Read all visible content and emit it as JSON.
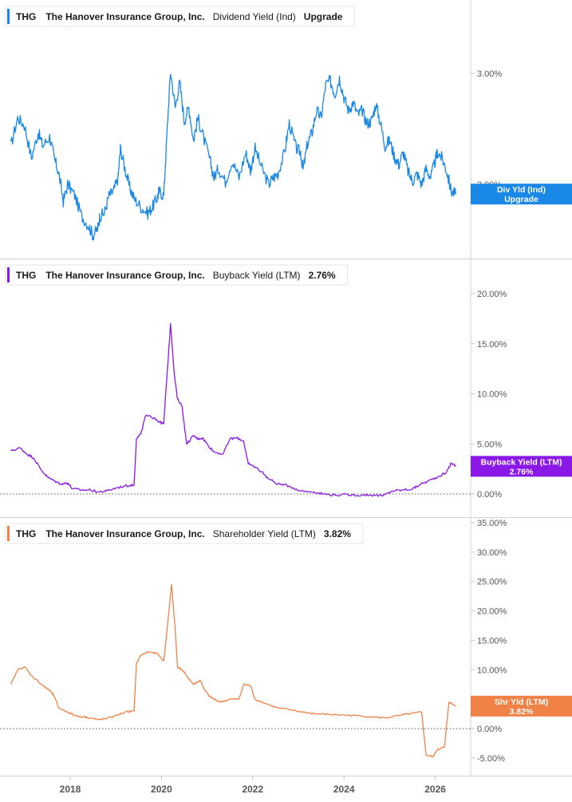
{
  "chart_data": {
    "type": "line",
    "x_axis": {
      "ticks": [
        "2018",
        "2020",
        "2022",
        "2024",
        "2026"
      ],
      "range": [
        "2016-09-01",
        "2026-07-01"
      ]
    },
    "panels": [
      {
        "ticker": "THG",
        "company": "The Hanover Insurance Group, Inc.",
        "metric": "Dividend Yield (Ind)",
        "value_label": "Upgrade",
        "color": "#1a88e6",
        "flag": {
          "line1": "Div Yld (Ind)",
          "line2": "Upgrade",
          "value": 1.93
        },
        "y_scale": "log",
        "ylim": [
          1.55,
          3.5
        ],
        "y_ticks": [
          {
            "value": 3.0,
            "label": "3.00%"
          },
          {
            "value": 2.0,
            "label": "2.00%"
          }
        ],
        "zero_line": false,
        "series": [
          [
            2016.7,
            2.3
          ],
          [
            2016.85,
            2.55
          ],
          [
            2017.0,
            2.48
          ],
          [
            2017.15,
            2.2
          ],
          [
            2017.3,
            2.42
          ],
          [
            2017.4,
            2.3
          ],
          [
            2017.55,
            2.38
          ],
          [
            2017.65,
            2.2
          ],
          [
            2017.75,
            2.08
          ],
          [
            2017.85,
            1.88
          ],
          [
            2017.95,
            2.0
          ],
          [
            2018.1,
            1.92
          ],
          [
            2018.25,
            1.78
          ],
          [
            2018.4,
            1.72
          ],
          [
            2018.5,
            1.66
          ],
          [
            2018.6,
            1.7
          ],
          [
            2018.65,
            1.78
          ],
          [
            2018.75,
            1.8
          ],
          [
            2018.85,
            1.92
          ],
          [
            2018.95,
            1.95
          ],
          [
            2019.05,
            2.05
          ],
          [
            2019.1,
            2.28
          ],
          [
            2019.2,
            2.12
          ],
          [
            2019.3,
            1.98
          ],
          [
            2019.4,
            1.9
          ],
          [
            2019.55,
            1.84
          ],
          [
            2019.7,
            1.8
          ],
          [
            2019.8,
            1.84
          ],
          [
            2019.9,
            1.9
          ],
          [
            2019.95,
            1.95
          ],
          [
            2020.05,
            1.92
          ],
          [
            2020.12,
            2.4
          ],
          [
            2020.2,
            3.02
          ],
          [
            2020.3,
            2.65
          ],
          [
            2020.4,
            2.9
          ],
          [
            2020.5,
            2.52
          ],
          [
            2020.6,
            2.65
          ],
          [
            2020.7,
            2.35
          ],
          [
            2020.8,
            2.55
          ],
          [
            2020.9,
            2.4
          ],
          [
            2021.05,
            2.2
          ],
          [
            2021.15,
            2.05
          ],
          [
            2021.25,
            2.12
          ],
          [
            2021.4,
            2.02
          ],
          [
            2021.55,
            2.18
          ],
          [
            2021.7,
            2.05
          ],
          [
            2021.85,
            2.25
          ],
          [
            2021.95,
            2.1
          ],
          [
            2022.05,
            2.28
          ],
          [
            2022.2,
            2.12
          ],
          [
            2022.35,
            2.0
          ],
          [
            2022.45,
            2.05
          ],
          [
            2022.55,
            2.08
          ],
          [
            2022.7,
            2.25
          ],
          [
            2022.8,
            2.5
          ],
          [
            2022.95,
            2.28
          ],
          [
            2023.05,
            2.25
          ],
          [
            2023.1,
            2.1
          ],
          [
            2023.2,
            2.32
          ],
          [
            2023.3,
            2.42
          ],
          [
            2023.4,
            2.62
          ],
          [
            2023.5,
            2.55
          ],
          [
            2023.6,
            2.88
          ],
          [
            2023.7,
            2.92
          ],
          [
            2023.8,
            2.78
          ],
          [
            2023.9,
            2.95
          ],
          [
            2024.0,
            2.75
          ],
          [
            2024.1,
            2.62
          ],
          [
            2024.2,
            2.7
          ],
          [
            2024.3,
            2.58
          ],
          [
            2024.4,
            2.62
          ],
          [
            2024.5,
            2.5
          ],
          [
            2024.6,
            2.52
          ],
          [
            2024.7,
            2.68
          ],
          [
            2024.8,
            2.5
          ],
          [
            2024.9,
            2.3
          ],
          [
            2025.0,
            2.35
          ],
          [
            2025.1,
            2.22
          ],
          [
            2025.2,
            2.15
          ],
          [
            2025.3,
            2.25
          ],
          [
            2025.4,
            2.1
          ],
          [
            2025.5,
            2.02
          ],
          [
            2025.6,
            2.08
          ],
          [
            2025.7,
            2.0
          ],
          [
            2025.8,
            2.12
          ],
          [
            2025.9,
            2.05
          ],
          [
            2026.0,
            2.18
          ],
          [
            2026.05,
            2.25
          ],
          [
            2026.15,
            2.2
          ],
          [
            2026.25,
            2.1
          ],
          [
            2026.35,
            1.95
          ],
          [
            2026.45,
            1.93
          ]
        ]
      },
      {
        "ticker": "THG",
        "company": "The Hanover Insurance Group, Inc.",
        "metric": "Buyback Yield (LTM)",
        "value_label": "2.76%",
        "color": "#8a19e8",
        "flag": {
          "line1": "Buyback Yield (LTM)",
          "line2": "2.76%",
          "value": 2.76
        },
        "y_scale": "linear",
        "ylim": [
          -0.5,
          20
        ],
        "y_ticks": [
          {
            "value": 20,
            "label": "20.00%"
          },
          {
            "value": 15,
            "label": "15.00%"
          },
          {
            "value": 10,
            "label": "10.00%"
          },
          {
            "value": 5,
            "label": "5.00%"
          },
          {
            "value": 0,
            "label": "0.00%"
          }
        ],
        "zero_line": true,
        "series": [
          [
            2016.7,
            4.3
          ],
          [
            2016.9,
            4.6
          ],
          [
            2017.05,
            4.0
          ],
          [
            2017.2,
            3.6
          ],
          [
            2017.35,
            2.5
          ],
          [
            2017.5,
            1.7
          ],
          [
            2017.65,
            1.3
          ],
          [
            2017.8,
            1.0
          ],
          [
            2017.95,
            1.1
          ],
          [
            2018.05,
            0.5
          ],
          [
            2018.25,
            0.4
          ],
          [
            2018.45,
            0.4
          ],
          [
            2018.6,
            0.2
          ],
          [
            2018.8,
            0.3
          ],
          [
            2019.0,
            0.6
          ],
          [
            2019.2,
            0.8
          ],
          [
            2019.4,
            0.9
          ],
          [
            2019.45,
            5.5
          ],
          [
            2019.55,
            6.0
          ],
          [
            2019.65,
            7.8
          ],
          [
            2019.85,
            7.6
          ],
          [
            2019.95,
            7.2
          ],
          [
            2020.05,
            7.0
          ],
          [
            2020.1,
            10.5
          ],
          [
            2020.2,
            17.0
          ],
          [
            2020.28,
            12.0
          ],
          [
            2020.35,
            9.5
          ],
          [
            2020.45,
            8.8
          ],
          [
            2020.55,
            5.0
          ],
          [
            2020.7,
            5.8
          ],
          [
            2020.8,
            5.5
          ],
          [
            2020.9,
            5.6
          ],
          [
            2021.0,
            5.0
          ],
          [
            2021.15,
            4.2
          ],
          [
            2021.35,
            4.0
          ],
          [
            2021.5,
            5.5
          ],
          [
            2021.65,
            5.6
          ],
          [
            2021.8,
            5.3
          ],
          [
            2021.9,
            3.0
          ],
          [
            2022.05,
            2.7
          ],
          [
            2022.2,
            2.2
          ],
          [
            2022.35,
            1.5
          ],
          [
            2022.55,
            1.0
          ],
          [
            2022.8,
            0.8
          ],
          [
            2023.05,
            0.3
          ],
          [
            2023.35,
            0.2
          ],
          [
            2023.55,
            0.0
          ],
          [
            2023.8,
            -0.1
          ],
          [
            2024.1,
            -0.1
          ],
          [
            2024.4,
            -0.1
          ],
          [
            2024.65,
            -0.1
          ],
          [
            2024.85,
            -0.2
          ],
          [
            2025.05,
            0.3
          ],
          [
            2025.3,
            0.4
          ],
          [
            2025.5,
            0.5
          ],
          [
            2025.65,
            0.9
          ],
          [
            2025.85,
            1.3
          ],
          [
            2026.05,
            1.7
          ],
          [
            2026.25,
            2.2
          ],
          [
            2026.35,
            3.1
          ],
          [
            2026.45,
            2.76
          ]
        ]
      },
      {
        "ticker": "THG",
        "company": "The Hanover Insurance Group, Inc.",
        "metric": "Shareholder Yield (LTM)",
        "value_label": "3.82%",
        "color": "#f08248",
        "flag": {
          "line1": "Shr Yld (LTM)",
          "line2": "3.82%",
          "value": 3.82
        },
        "y_scale": "linear",
        "ylim": [
          -7.5,
          35
        ],
        "y_ticks": [
          {
            "value": 35,
            "label": "35.00%"
          },
          {
            "value": 30,
            "label": "30.00%"
          },
          {
            "value": 25,
            "label": "25.00%"
          },
          {
            "value": 20,
            "label": "20.00%"
          },
          {
            "value": 15,
            "label": "15.00%"
          },
          {
            "value": 10,
            "label": "10.00%"
          },
          {
            "value": 5,
            "label": "5.00%"
          },
          {
            "value": 0,
            "label": "0.00%"
          },
          {
            "value": -5,
            "label": "-5.00%"
          }
        ],
        "zero_line": true,
        "series": [
          [
            2016.7,
            7.5
          ],
          [
            2016.85,
            10.0
          ],
          [
            2017.0,
            10.5
          ],
          [
            2017.15,
            9.0
          ],
          [
            2017.3,
            8.0
          ],
          [
            2017.45,
            7.0
          ],
          [
            2017.55,
            6.5
          ],
          [
            2017.65,
            5.5
          ],
          [
            2017.75,
            3.5
          ],
          [
            2017.95,
            2.8
          ],
          [
            2018.1,
            2.2
          ],
          [
            2018.3,
            2.0
          ],
          [
            2018.45,
            1.8
          ],
          [
            2018.6,
            1.5
          ],
          [
            2018.8,
            1.7
          ],
          [
            2019.0,
            2.2
          ],
          [
            2019.2,
            2.8
          ],
          [
            2019.4,
            3.0
          ],
          [
            2019.45,
            11.0
          ],
          [
            2019.55,
            12.5
          ],
          [
            2019.7,
            13.0
          ],
          [
            2019.9,
            12.8
          ],
          [
            2020.05,
            11.5
          ],
          [
            2020.1,
            15.0
          ],
          [
            2020.22,
            24.5
          ],
          [
            2020.3,
            17.0
          ],
          [
            2020.35,
            10.5
          ],
          [
            2020.45,
            10.0
          ],
          [
            2020.55,
            9.0
          ],
          [
            2020.7,
            7.5
          ],
          [
            2020.85,
            8.2
          ],
          [
            2020.95,
            6.5
          ],
          [
            2021.05,
            5.5
          ],
          [
            2021.15,
            5.0
          ],
          [
            2021.3,
            4.5
          ],
          [
            2021.5,
            5.0
          ],
          [
            2021.7,
            5.0
          ],
          [
            2021.8,
            7.5
          ],
          [
            2021.95,
            7.3
          ],
          [
            2022.05,
            5.0
          ],
          [
            2022.3,
            4.2
          ],
          [
            2022.55,
            3.5
          ],
          [
            2022.8,
            3.2
          ],
          [
            2023.1,
            2.8
          ],
          [
            2023.4,
            2.5
          ],
          [
            2023.7,
            2.4
          ],
          [
            2024.0,
            2.3
          ],
          [
            2024.3,
            2.2
          ],
          [
            2024.6,
            2.0
          ],
          [
            2024.9,
            1.8
          ],
          [
            2025.2,
            2.2
          ],
          [
            2025.5,
            2.6
          ],
          [
            2025.7,
            2.8
          ],
          [
            2025.8,
            -4.5
          ],
          [
            2025.95,
            -4.8
          ],
          [
            2026.05,
            -3.5
          ],
          [
            2026.2,
            -3.2
          ],
          [
            2026.3,
            4.5
          ],
          [
            2026.45,
            3.82
          ]
        ]
      }
    ]
  }
}
